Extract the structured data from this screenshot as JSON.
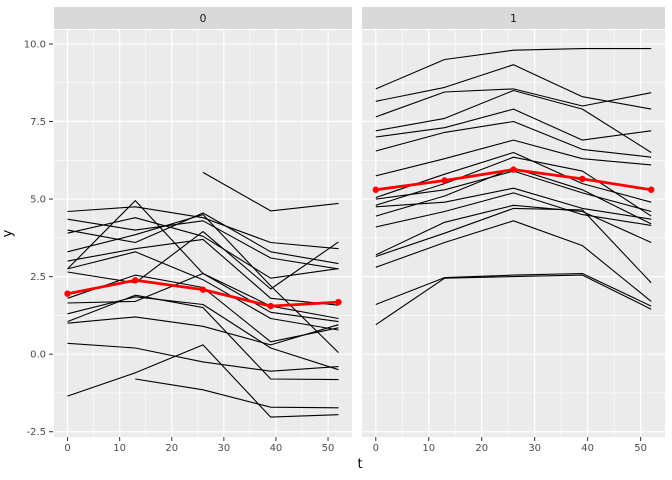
{
  "chart_data": {
    "type": "line",
    "title": "",
    "xlabel": "t",
    "ylabel": "y",
    "legend": "none",
    "grid": "on",
    "x": [
      0,
      13,
      26,
      39,
      52
    ],
    "xlim": [
      -2.6,
      54.6
    ],
    "ylim": [
      -2.67,
      10.45
    ],
    "x_ticks": {
      "values": [
        0,
        10,
        20,
        30,
        40,
        50
      ],
      "labels": [
        "0",
        "10",
        "20",
        "30",
        "40",
        "50"
      ]
    },
    "y_ticks": {
      "values": [
        10,
        7.5,
        5,
        2.5,
        0,
        -2.5
      ],
      "labels": [
        "10.0",
        "7.5",
        "5.0",
        "2.5",
        "0.0",
        "-2.5"
      ]
    },
    "x_minor": [
      5,
      15,
      25,
      35,
      45
    ],
    "y_minor": [
      -1.25,
      1.25,
      3.75,
      6.25,
      8.75
    ],
    "colors": {
      "panel_bg": "#ebebeb",
      "strip_bg": "#d9d9d9",
      "grid": "#ffffff",
      "trajectory": "#000000",
      "mean": "#ff0000",
      "axis_text": "#4d4d4d",
      "tick_mark": "#333333",
      "strip_text": "#1a1a1a"
    },
    "facets": [
      {
        "label": "0",
        "mean": [
          1.95,
          2.38,
          2.08,
          1.55,
          1.68
        ],
        "lines": [
          [
            4.6,
            4.75,
            4.4,
            3.6,
            3.4
          ],
          [
            4.35,
            4.0,
            4.3,
            3.1,
            2.75
          ],
          [
            4.0,
            3.6,
            4.55,
            3.3,
            2.92
          ],
          [
            3.9,
            4.4,
            3.8,
            2.45,
            2.76
          ],
          [
            2.75,
            4.95,
            2.6,
            1.55,
            1.15
          ],
          [
            3.3,
            3.85,
            4.5,
            2.2,
            0.05
          ],
          [
            3.0,
            3.4,
            3.7,
            1.8,
            1.58
          ],
          [
            2.75,
            3.3,
            2.4,
            1.15,
            0.78
          ],
          [
            2.65,
            2.3,
            3.95,
            2.1,
            3.62
          ],
          [
            1.8,
            2.55,
            2.15,
            0.4,
            0.85
          ],
          [
            1.65,
            1.7,
            2.6,
            1.35,
            1.05
          ],
          [
            1.3,
            1.85,
            1.6,
            0.2,
            -0.5
          ],
          [
            1.05,
            1.9,
            1.5,
            -0.8,
            -0.82
          ],
          [
            1.0,
            1.2,
            0.9,
            0.3,
            0.95
          ],
          [
            0.35,
            0.2,
            -0.25,
            -0.55,
            -0.4
          ],
          [
            -1.35,
            -0.6,
            0.3,
            -2.03,
            -1.95
          ],
          [
            null,
            -0.8,
            -1.15,
            -1.71,
            -1.73
          ],
          [
            null,
            null,
            5.86,
            4.62,
            4.86
          ]
        ]
      },
      {
        "label": "1",
        "mean": [
          5.3,
          5.6,
          5.95,
          5.65,
          5.3
        ],
        "lines": [
          [
            8.55,
            9.5,
            9.8,
            9.85,
            9.85
          ],
          [
            8.15,
            8.6,
            9.33,
            8.3,
            7.9
          ],
          [
            7.65,
            8.45,
            8.55,
            8.0,
            8.43
          ],
          [
            7.2,
            7.6,
            8.5,
            7.9,
            6.5
          ],
          [
            7.0,
            7.3,
            7.9,
            6.9,
            7.2
          ],
          [
            6.55,
            7.15,
            7.5,
            6.6,
            6.35
          ],
          [
            5.75,
            6.3,
            6.9,
            6.3,
            6.1
          ],
          [
            5.05,
            5.8,
            6.5,
            5.5,
            4.9
          ],
          [
            5.0,
            5.3,
            5.9,
            5.2,
            4.6
          ],
          [
            4.8,
            5.5,
            6.35,
            5.9,
            4.45
          ],
          [
            4.75,
            4.9,
            5.35,
            4.7,
            4.35
          ],
          [
            4.1,
            4.6,
            5.2,
            4.5,
            4.15
          ],
          [
            3.2,
            4.25,
            4.8,
            4.6,
            3.6
          ],
          [
            3.15,
            3.9,
            4.7,
            4.65,
            2.3
          ],
          [
            2.8,
            3.6,
            4.3,
            3.5,
            1.7
          ],
          [
            4.45,
            5.1,
            6.0,
            5.3,
            4.2
          ],
          [
            1.6,
            2.47,
            2.55,
            2.6,
            1.55
          ],
          [
            0.95,
            2.45,
            2.5,
            2.55,
            1.45
          ]
        ]
      }
    ]
  }
}
